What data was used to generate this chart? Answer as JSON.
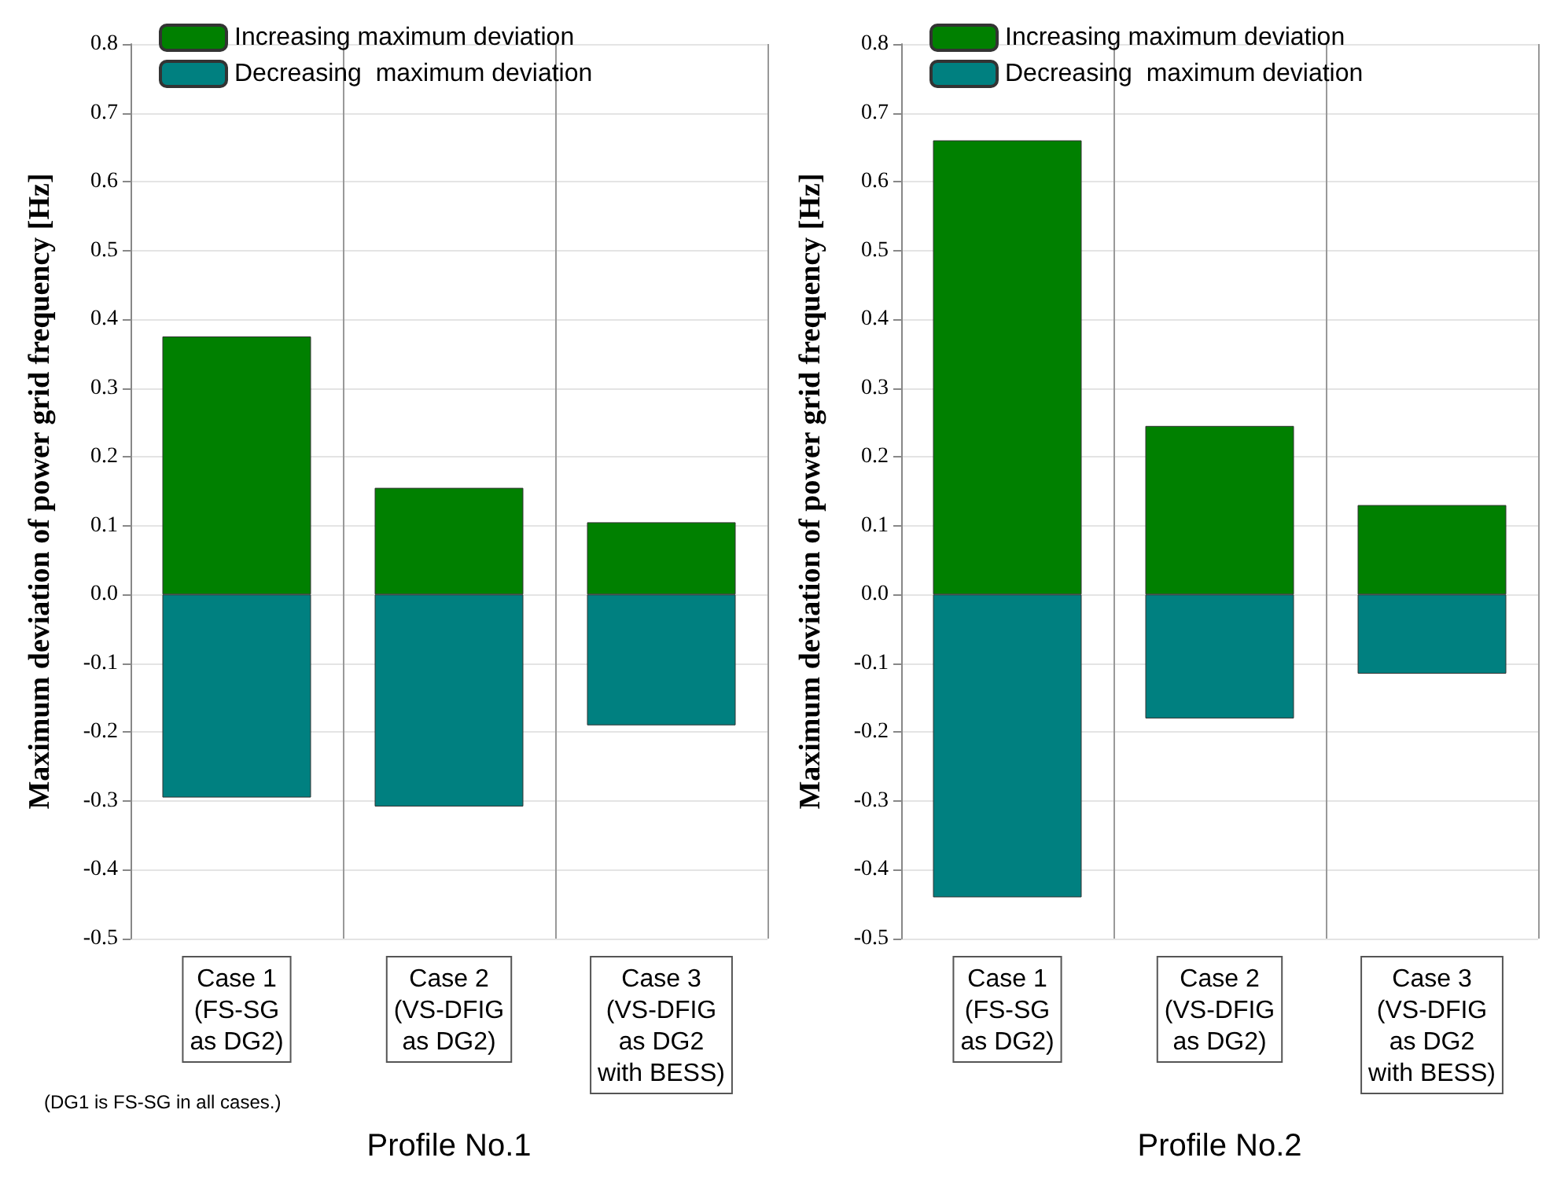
{
  "chart_data": [
    {
      "type": "bar",
      "xlabel": "Profile No.1",
      "ylabel": "Maximum deviation of power grid frequency [Hz]",
      "categories": [
        "Case 1\n(FS-SG\nas DG2)",
        "Case 2\n(VS-DFIG\nas DG2)",
        "Case 3\n(VS-DFIG\nas DG2\nwith BESS)"
      ],
      "stacked": true,
      "series": [
        {
          "name": "Increasing maximum deviation",
          "color": "#008000",
          "values": [
            0.375,
            0.155,
            0.105
          ]
        },
        {
          "name": "Decreasing  maximum deviation",
          "color": "#008080",
          "values": [
            -0.295,
            -0.308,
            -0.19
          ]
        }
      ],
      "ylim": [
        -0.5,
        0.8
      ],
      "yticks": [
        -0.5,
        -0.4,
        -0.3,
        -0.2,
        -0.1,
        {
          "value": 0,
          "label": "0.0"
        },
        0.1,
        0.2,
        0.3,
        0.4,
        0.5,
        0.6,
        0.7,
        0.8
      ],
      "grid": true,
      "legend": "top left",
      "annotations": [
        "(DG1 is FS-SG in all cases.)"
      ]
    },
    {
      "type": "bar",
      "xlabel": "Profile No.2",
      "ylabel": "Maximum deviation of power grid frequency [Hz]",
      "categories": [
        "Case 1\n(FS-SG\nas DG2)",
        "Case 2\n(VS-DFIG\nas DG2)",
        "Case 3\n(VS-DFIG\nas DG2\nwith BESS)"
      ],
      "stacked": true,
      "series": [
        {
          "name": "Increasing maximum deviation",
          "color": "#008000",
          "values": [
            0.66,
            0.245,
            0.13
          ]
        },
        {
          "name": "Decreasing  maximum deviation",
          "color": "#008080",
          "values": [
            -0.44,
            -0.18,
            -0.115
          ]
        }
      ],
      "ylim": [
        -0.5,
        0.8
      ],
      "yticks": [
        -0.5,
        -0.4,
        -0.3,
        -0.2,
        -0.1,
        {
          "value": 0,
          "label": "0.0"
        },
        0.1,
        0.2,
        0.3,
        0.4,
        0.5,
        0.6,
        0.7,
        0.8
      ],
      "grid": true,
      "legend": "top left"
    }
  ]
}
